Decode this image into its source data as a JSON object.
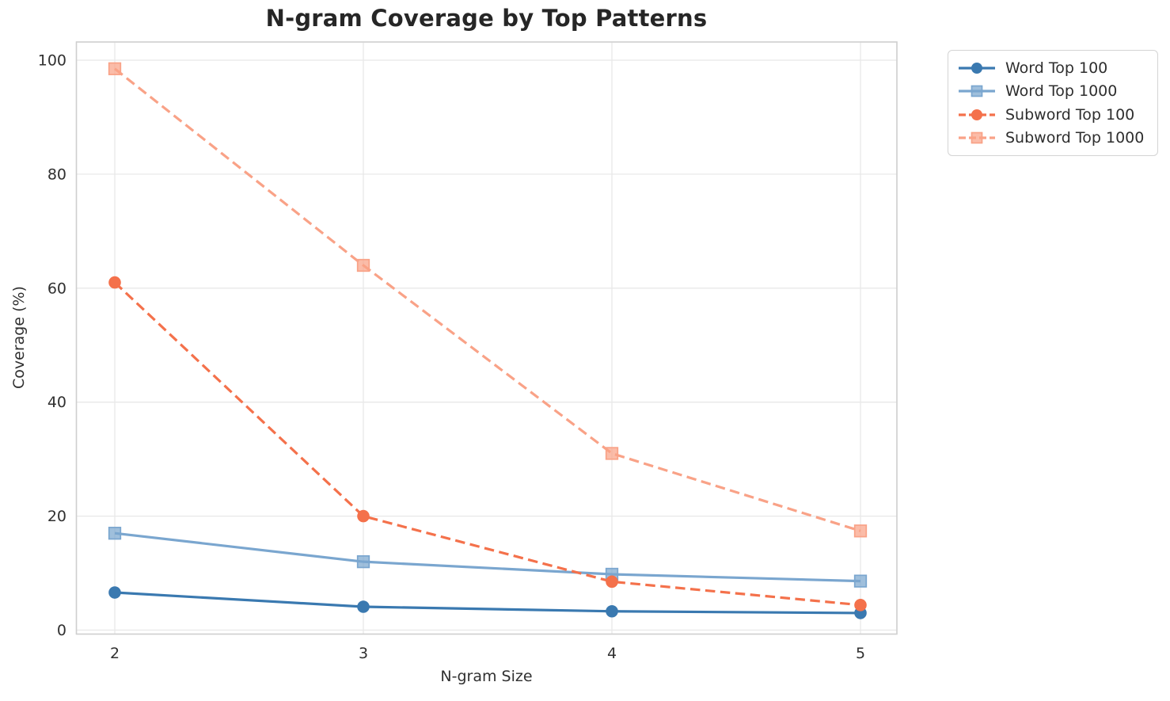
{
  "chart_data": {
    "type": "line",
    "title": "N-gram Coverage by Top Patterns",
    "xlabel": "N-gram Size",
    "ylabel": "Coverage (%)",
    "x": [
      2,
      3,
      4,
      5
    ],
    "xticks": [
      "2",
      "3",
      "4",
      "5"
    ],
    "yticks": [
      0,
      20,
      40,
      60,
      80,
      100
    ],
    "ylim": [
      0,
      100
    ],
    "grid": true,
    "legend_position": "outside upper right",
    "series": [
      {
        "name": "Word Top 100",
        "marker": "circle",
        "linestyle": "solid",
        "color": "#3A79B0",
        "values": [
          6.6,
          4.1,
          3.3,
          3.0
        ]
      },
      {
        "name": "Word Top 1000",
        "marker": "square",
        "linestyle": "solid",
        "color": "#7AA6CF",
        "values": [
          17.0,
          12.0,
          9.8,
          8.6
        ]
      },
      {
        "name": "Subword Top 100",
        "marker": "circle",
        "linestyle": "dashed",
        "color": "#F4714B",
        "values": [
          61.0,
          20.0,
          8.5,
          4.4
        ]
      },
      {
        "name": "Subword Top 1000",
        "marker": "square",
        "linestyle": "dashed",
        "color": "#F9A287",
        "values": [
          98.5,
          64.0,
          31.0,
          17.4
        ]
      }
    ],
    "colors": {
      "grid": "#E8E8E8",
      "frame": "#CFCFCF",
      "tick_label": "#303030",
      "title": "#262626",
      "axis_label": "#303030",
      "background": "#FFFFFF"
    }
  }
}
